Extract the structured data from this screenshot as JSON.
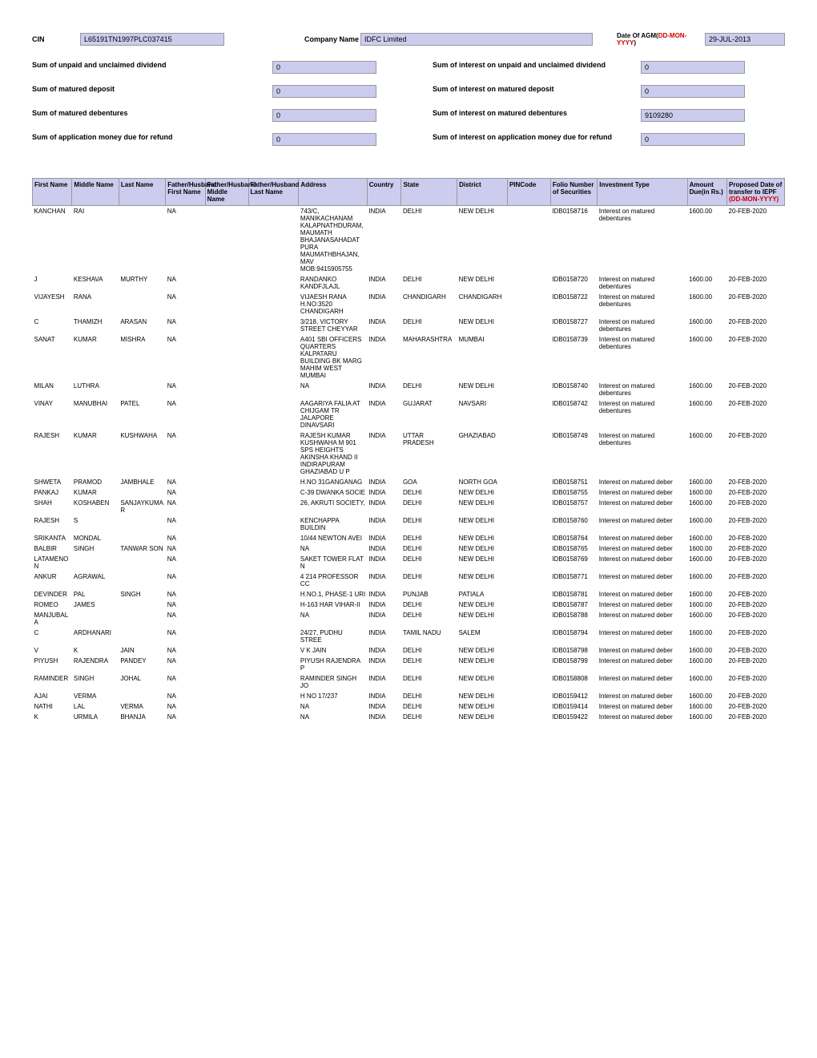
{
  "header": {
    "cin_label": "CIN",
    "cin_value": "L65191TN1997PLC037415",
    "company_label": "Company Name",
    "company_value": "IDFC Limited",
    "date_label_prefix": "Date Of AGM(",
    "date_label_red": "DD-MON-YYYY",
    "date_label_suffix": ")",
    "date_value": "29-JUL-2013"
  },
  "sums": [
    {
      "left_label": "Sum of unpaid and unclaimed dividend",
      "left_val": "0",
      "right_label": "Sum of interest on unpaid and unclaimed dividend",
      "right_val": "0"
    },
    {
      "left_label": "Sum of matured deposit",
      "left_val": "0",
      "right_label": "Sum of interest on matured deposit",
      "right_val": "0"
    },
    {
      "left_label": "Sum of matured debentures",
      "left_val": "0",
      "right_label": "Sum of interest on matured debentures",
      "right_val": "9109280"
    },
    {
      "left_label": "Sum of application money due for refund",
      "left_val": "0",
      "right_label": "Sum of interest on application money due for refund",
      "right_val": "0"
    }
  ],
  "columns": {
    "first": "First Name",
    "middle": "Middle Name",
    "last": "Last Name",
    "fh_first": "Father/Husband First Name",
    "fh_middle": "Father/Husband Middle Name",
    "fh_last": "Father/Husband Last Name",
    "address": "Address",
    "country": "Country",
    "state": "State",
    "district": "District",
    "pin": "PINCode",
    "folio": "Folio Number of Securities",
    "inv_type": "Investment Type",
    "amount": "Amount Due(in Rs.)",
    "proposed_1": "Proposed Date of transfer to IEPF",
    "proposed_2": "(DD-MON-YYYY)"
  },
  "rows": [
    {
      "first": "KANCHAN",
      "middle": "RAI",
      "last": "",
      "fh": "NA",
      "address": "743/C, MANIKACHANAM KALAPNATHDURAM, MAUMATH BHAJANASAHADAT PURA MAUMATHBHAJAN, MAV MOB:9415905755",
      "country": "INDIA",
      "state": "DELHI",
      "district": "NEW DELHI",
      "pin": "",
      "folio": "IDB0158716",
      "inv": "Interest on matured debentures",
      "amount": "1600.00",
      "date": "20-FEB-2020"
    },
    {
      "first": "J",
      "middle": "KESHAVA",
      "last": "MURTHY",
      "fh": "NA",
      "address": "RANDANKO KANDFJLAJL",
      "country": "INDIA",
      "state": "DELHI",
      "district": "NEW DELHI",
      "pin": "",
      "folio": "IDB0158720",
      "inv": "Interest on matured debentures",
      "amount": "1600.00",
      "date": "20-FEB-2020"
    },
    {
      "first": "VIJAYESH",
      "middle": "RANA",
      "last": "",
      "fh": "NA",
      "address": "VIJAESH RANA H.NO:3520 CHANDIGARH",
      "country": "INDIA",
      "state": "CHANDIGARH",
      "district": "CHANDIGARH",
      "pin": "",
      "folio": "IDB0158722",
      "inv": "Interest on matured debentures",
      "amount": "1600.00",
      "date": "20-FEB-2020"
    },
    {
      "first": "C",
      "middle": "THAMIZH",
      "last": "ARASAN",
      "fh": "NA",
      "address": "3/218, VICTORY STREET CHEYYAR",
      "country": "INDIA",
      "state": "DELHI",
      "district": "NEW DELHI",
      "pin": "",
      "folio": "IDB0158727",
      "inv": "Interest on matured debentures",
      "amount": "1600.00",
      "date": "20-FEB-2020"
    },
    {
      "first": "SANAT",
      "middle": "KUMAR",
      "last": "MISHRA",
      "fh": "NA",
      "address": "A401 SBI OFFICERS QUARTERS KALPATARU BUILDING BK MARG MAHIM WEST MUMBAI",
      "country": "INDIA",
      "state": "MAHARASHTRA",
      "district": "MUMBAI",
      "pin": "",
      "folio": "IDB0158739",
      "inv": "Interest on matured debentures",
      "amount": "1600.00",
      "date": "20-FEB-2020"
    },
    {
      "first": "MILAN",
      "middle": "LUTHRA",
      "last": "",
      "fh": "NA",
      "address": "NA",
      "country": "INDIA",
      "state": "DELHI",
      "district": "NEW DELHI",
      "pin": "",
      "folio": "IDB0158740",
      "inv": "Interest on matured debentures",
      "amount": "1600.00",
      "date": "20-FEB-2020"
    },
    {
      "first": "VINAY",
      "middle": "MANUBHAI",
      "last": "PATEL",
      "fh": "NA",
      "address": "AAGARIYA FALIA AT CHIJGAM TR JALAPORE DINAVSARI",
      "country": "INDIA",
      "state": "GUJARAT",
      "district": "NAVSARI",
      "pin": "",
      "folio": "IDB0158742",
      "inv": "Interest on matured debentures",
      "amount": "1600.00",
      "date": "20-FEB-2020"
    },
    {
      "first": "RAJESH",
      "middle": "KUMAR",
      "last": "KUSHWAHA",
      "fh": "NA",
      "address": "RAJESH KUMAR KUSHWAHA M 901 SPS HEIGHTS AKINSHA KHAND II INDIRAPURAM GHAZIABAD U P",
      "country": "INDIA",
      "state": "UTTAR PRADESH",
      "district": "GHAZIABAD",
      "pin": "",
      "folio": "IDB0158749",
      "inv": "Interest on matured debentures",
      "amount": "1600.00",
      "date": "20-FEB-2020"
    },
    {
      "first": "SHWETA",
      "middle": "PRAMOD",
      "last": "JAMBHALE",
      "fh": "NA",
      "address": "H.NO 31GANGANAG",
      "country": "INDIA",
      "state": "GOA",
      "district": "NORTH GOA",
      "pin": "",
      "folio": "IDB0158751",
      "inv": "Interest on matured deber",
      "amount": "1600.00",
      "date": "20-FEB-2020"
    },
    {
      "first": "PANKAJ",
      "middle": "KUMAR",
      "last": "",
      "fh": "NA",
      "address": "C-39 DWANKA SOCIE",
      "country": "INDIA",
      "state": "DELHI",
      "district": "NEW DELHI",
      "pin": "",
      "folio": "IDB0158755",
      "inv": "Interest on matured deber",
      "amount": "1600.00",
      "date": "20-FEB-2020"
    },
    {
      "first": "SHAH",
      "middle": "KOSHABEN",
      "last": "SANJAYKUMAR",
      "fh": "NA",
      "address": "26, AKRUTI SOCIETY,",
      "country": "INDIA",
      "state": "DELHI",
      "district": "NEW DELHI",
      "pin": "",
      "folio": "IDB0158757",
      "inv": "Interest on matured deber",
      "amount": "1600.00",
      "date": "20-FEB-2020"
    },
    {
      "first": "RAJESH",
      "middle": "S",
      "last": "",
      "fh": "NA",
      "address": "KENCHAPPA BUILDIN",
      "country": "INDIA",
      "state": "DELHI",
      "district": "NEW DELHI",
      "pin": "",
      "folio": "IDB0158760",
      "inv": "Interest on matured deber",
      "amount": "1600.00",
      "date": "20-FEB-2020"
    },
    {
      "first": "SRIKANTA",
      "middle": "MONDAL",
      "last": "",
      "fh": "NA",
      "address": "10/44 NEWTON AVEI",
      "country": "INDIA",
      "state": "DELHI",
      "district": "NEW DELHI",
      "pin": "",
      "folio": "IDB0158764",
      "inv": "Interest on matured deber",
      "amount": "1600.00",
      "date": "20-FEB-2020"
    },
    {
      "first": "BALBIR",
      "middle": "SINGH",
      "last": "TANWAR SON",
      "fh": "NA",
      "address": "NA",
      "country": "INDIA",
      "state": "DELHI",
      "district": "NEW DELHI",
      "pin": "",
      "folio": "IDB0158765",
      "inv": "Interest on matured deber",
      "amount": "1600.00",
      "date": "20-FEB-2020"
    },
    {
      "first": "LATAMENON",
      "middle": "",
      "last": "",
      "fh": "NA",
      "address": "SAKET TOWER FLAT N",
      "country": "INDIA",
      "state": "DELHI",
      "district": "NEW DELHI",
      "pin": "",
      "folio": "IDB0158769",
      "inv": "Interest on matured deber",
      "amount": "1600.00",
      "date": "20-FEB-2020"
    },
    {
      "first": "ANKUR",
      "middle": "AGRAWAL",
      "last": "",
      "fh": "NA",
      "address": "4 214 PROFESSOR CC",
      "country": "INDIA",
      "state": "DELHI",
      "district": "NEW DELHI",
      "pin": "",
      "folio": "IDB0158771",
      "inv": "Interest on matured deber",
      "amount": "1600.00",
      "date": "20-FEB-2020"
    },
    {
      "first": "DEVINDER",
      "middle": "PAL",
      "last": "SINGH",
      "fh": "NA",
      "address": "H.NO.1, PHASE-1 URI",
      "country": "INDIA",
      "state": "PUNJAB",
      "district": "PATIALA",
      "pin": "",
      "folio": "IDB0158781",
      "inv": "Interest on matured deber",
      "amount": "1600.00",
      "date": "20-FEB-2020"
    },
    {
      "first": "ROMEO",
      "middle": "JAMES",
      "last": "",
      "fh": "NA",
      "address": "H-163 HAR VIHAR-II",
      "country": "INDIA",
      "state": "DELHI",
      "district": "NEW DELHI",
      "pin": "",
      "folio": "IDB0158787",
      "inv": "Interest on matured deber",
      "amount": "1600.00",
      "date": "20-FEB-2020"
    },
    {
      "first": "MANJUBALA",
      "middle": "",
      "last": "",
      "fh": "NA",
      "address": "NA",
      "country": "INDIA",
      "state": "DELHI",
      "district": "NEW DELHI",
      "pin": "",
      "folio": "IDB0158788",
      "inv": "Interest on matured deber",
      "amount": "1600.00",
      "date": "20-FEB-2020"
    },
    {
      "first": "C",
      "middle": "ARDHANARI",
      "last": "",
      "fh": "NA",
      "address": "24/27, PUDHU STREE",
      "country": "INDIA",
      "state": "TAMIL NADU",
      "district": "SALEM",
      "pin": "",
      "folio": "IDB0158794",
      "inv": "Interest on matured deber",
      "amount": "1600.00",
      "date": "20-FEB-2020"
    },
    {
      "first": "V",
      "middle": "K",
      "last": "JAIN",
      "fh": "NA",
      "address": "V K JAIN",
      "country": "INDIA",
      "state": "DELHI",
      "district": "NEW DELHI",
      "pin": "",
      "folio": "IDB0158798",
      "inv": "Interest on matured deber",
      "amount": "1600.00",
      "date": "20-FEB-2020"
    },
    {
      "first": "PIYUSH",
      "middle": "RAJENDRA",
      "last": "PANDEY",
      "fh": "NA",
      "address": "PIYUSH RAJENDRA P",
      "country": "INDIA",
      "state": "DELHI",
      "district": "NEW DELHI",
      "pin": "",
      "folio": "IDB0158799",
      "inv": "Interest on matured deber",
      "amount": "1600.00",
      "date": "20-FEB-2020"
    },
    {
      "first": "RAMINDER",
      "middle": "SINGH",
      "last": "JOHAL",
      "fh": "NA",
      "address": "RAMINDER SINGH JO",
      "country": "INDIA",
      "state": "DELHI",
      "district": "NEW DELHI",
      "pin": "",
      "folio": "IDB0158808",
      "inv": "Interest on matured deber",
      "amount": "1600.00",
      "date": "20-FEB-2020"
    },
    {
      "first": "AJAI",
      "middle": "VERMA",
      "last": "",
      "fh": "NA",
      "address": "H NO 17/237",
      "country": "INDIA",
      "state": "DELHI",
      "district": "NEW DELHI",
      "pin": "",
      "folio": "IDB0159412",
      "inv": "Interest on matured deber",
      "amount": "1600.00",
      "date": "20-FEB-2020"
    },
    {
      "first": "NATHI",
      "middle": "LAL",
      "last": "VERMA",
      "fh": "NA",
      "address": "NA",
      "country": "INDIA",
      "state": "DELHI",
      "district": "NEW DELHI",
      "pin": "",
      "folio": "IDB0159414",
      "inv": "Interest on matured deber",
      "amount": "1600.00",
      "date": "20-FEB-2020"
    },
    {
      "first": "K",
      "middle": "URMILA",
      "last": "BHANJA",
      "fh": "NA",
      "address": "NA",
      "country": "INDIA",
      "state": "DELHI",
      "district": "NEW DELHI",
      "pin": "",
      "folio": "IDB0159422",
      "inv": "Interest on matured deber",
      "amount": "1600.00",
      "date": "20-FEB-2020"
    }
  ],
  "col_widths": {
    "first": "44px",
    "middle": "52px",
    "last": "52px",
    "fh_first": "44px",
    "fh_middle": "48px",
    "fh_last": "56px",
    "address": "76px",
    "country": "38px",
    "state": "62px",
    "district": "56px",
    "pin": "48px",
    "folio": "52px",
    "inv_type": "100px",
    "amount": "44px",
    "date": "64px"
  }
}
